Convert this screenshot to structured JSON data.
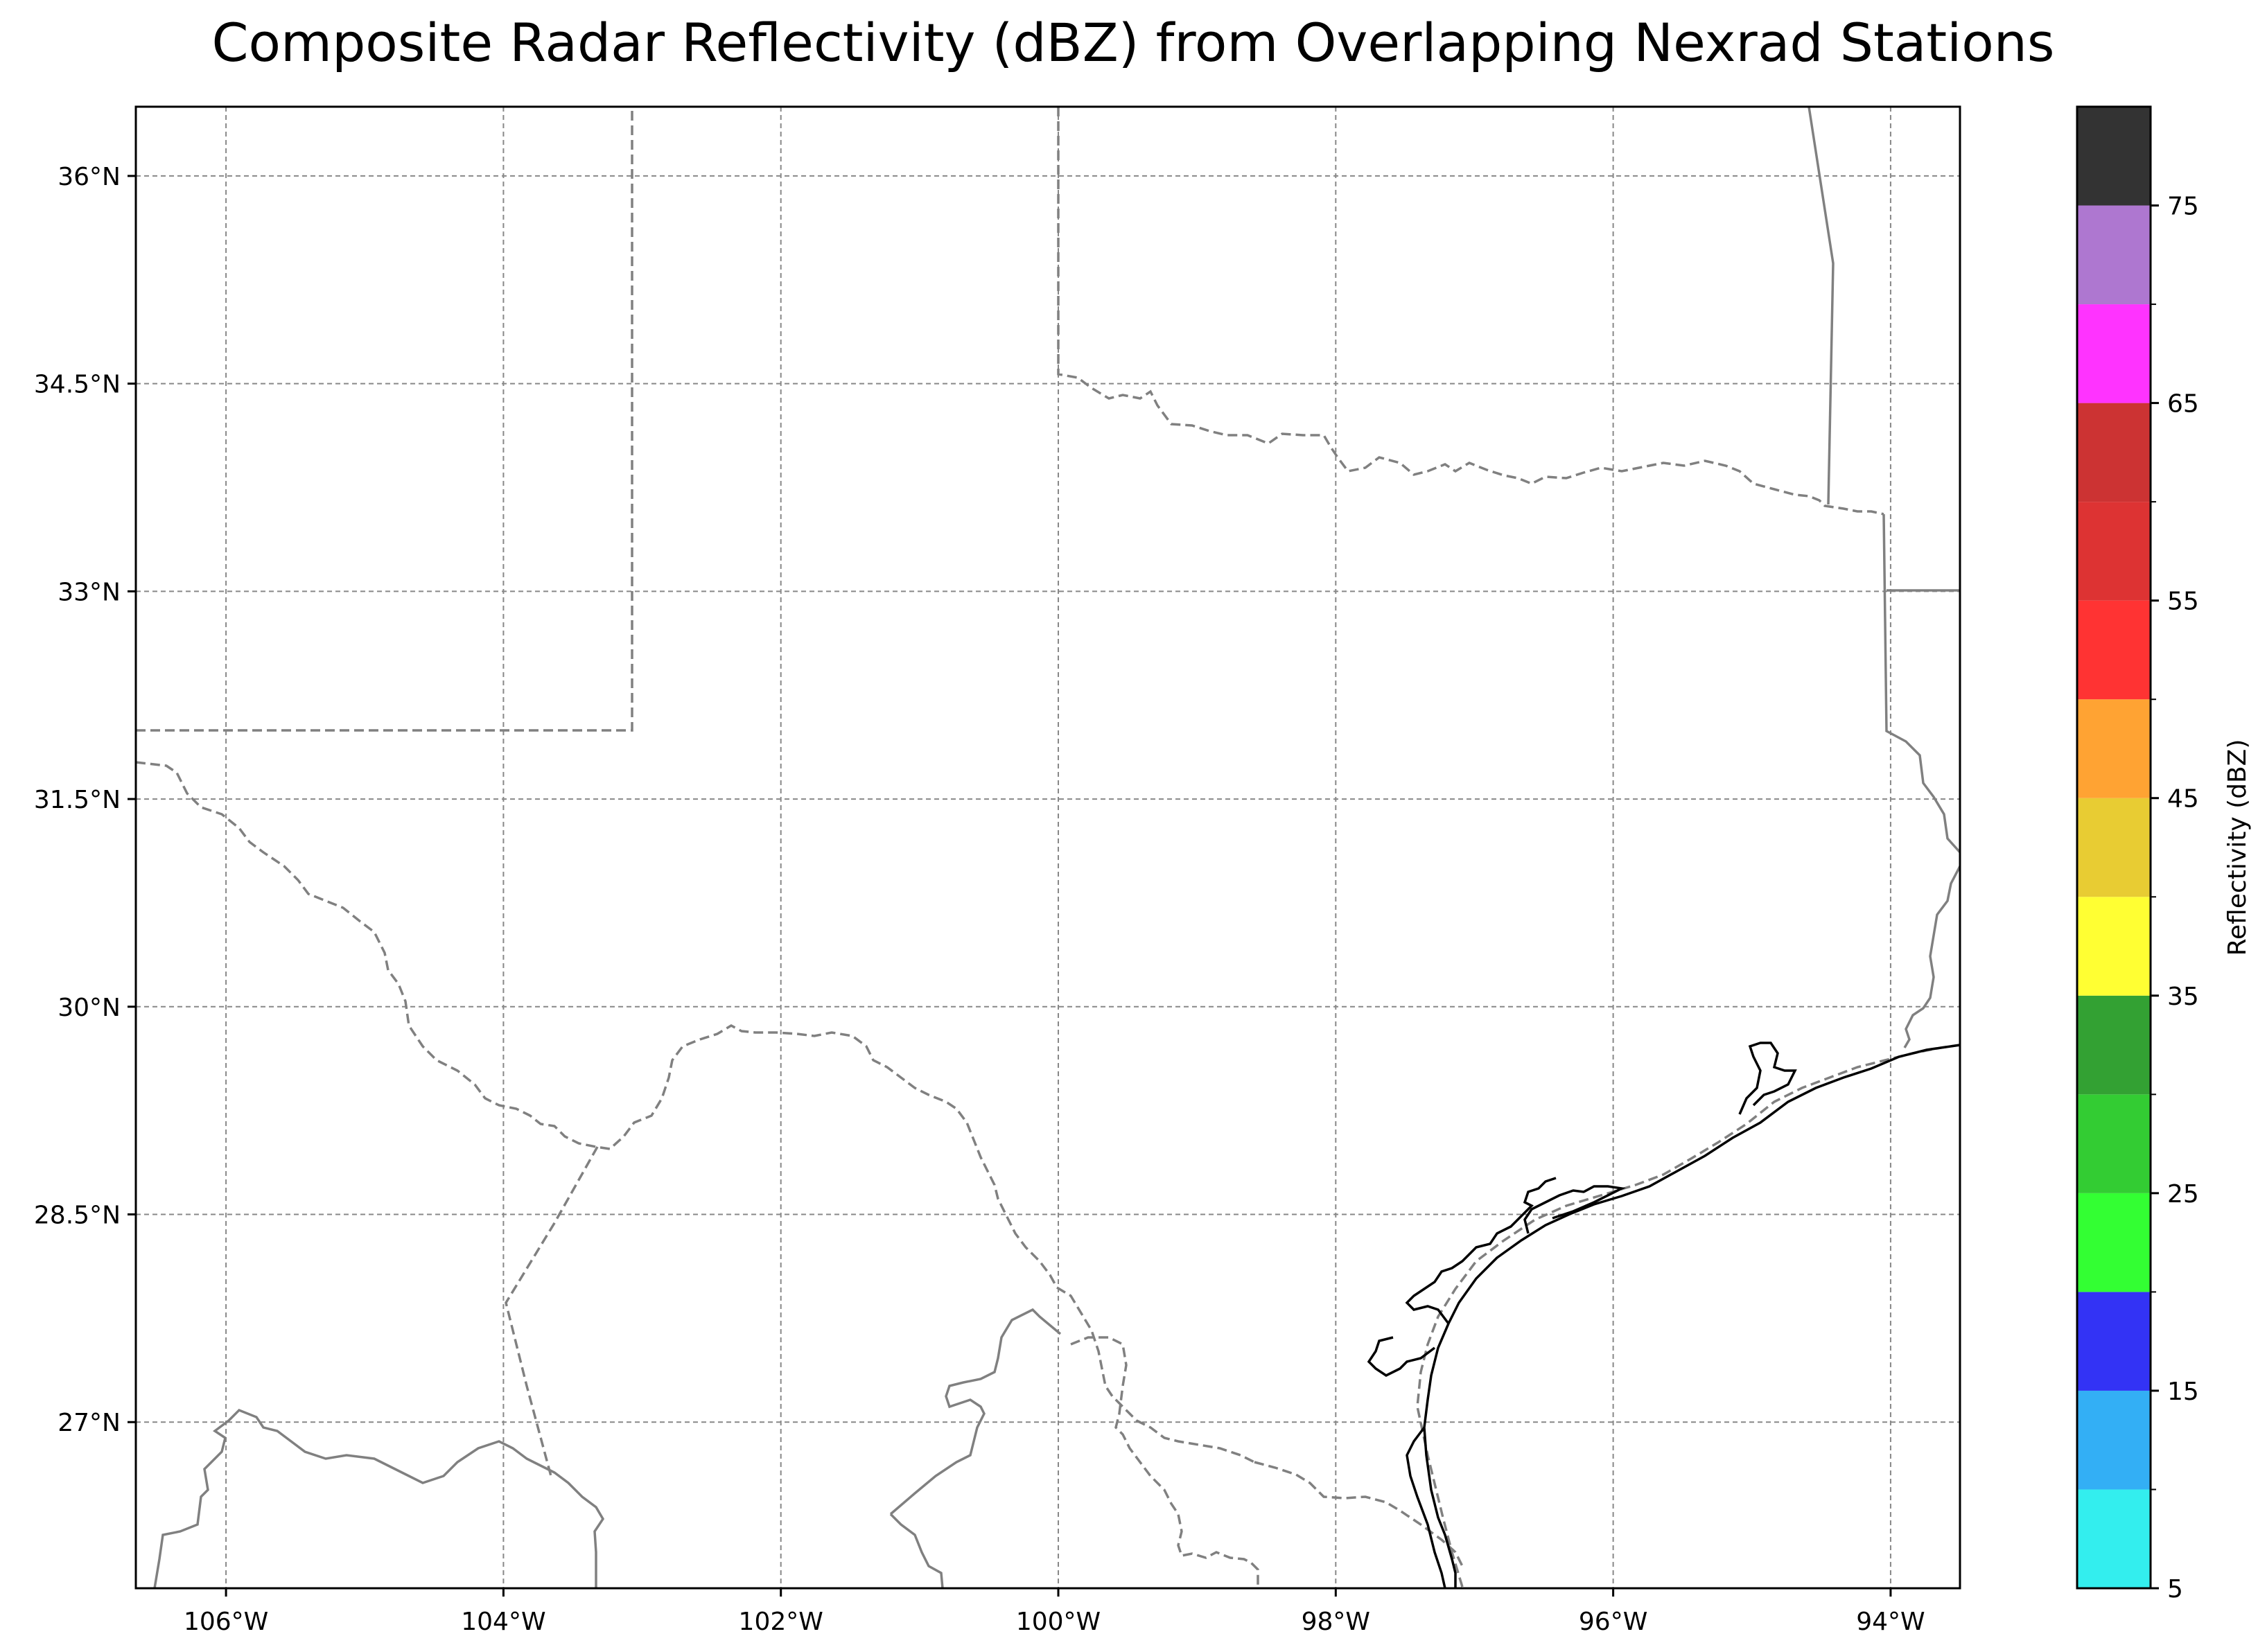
{
  "title": "Composite Radar Reflectivity (dBZ) from Overlapping Nexrad Stations",
  "map": {
    "lon_range": [
      -106.65,
      -93.5
    ],
    "lat_range": [
      25.8,
      36.5
    ],
    "lon_ticks": [
      {
        "value": -106,
        "label": "106°W"
      },
      {
        "value": -104,
        "label": "104°W"
      },
      {
        "value": -102,
        "label": "102°W"
      },
      {
        "value": -100,
        "label": "100°W"
      },
      {
        "value": -98,
        "label": "98°W"
      },
      {
        "value": -96,
        "label": "96°W"
      },
      {
        "value": -94,
        "label": "94°W"
      }
    ],
    "lat_ticks": [
      {
        "value": 27,
        "label": "27°N"
      },
      {
        "value": 28.5,
        "label": "28.5°N"
      },
      {
        "value": 30,
        "label": "30°N"
      },
      {
        "value": 31.5,
        "label": "31.5°N"
      },
      {
        "value": 33,
        "label": "33°N"
      },
      {
        "value": 34.5,
        "label": "34.5°N"
      },
      {
        "value": 36,
        "label": "36°N"
      }
    ],
    "gridlines": true,
    "border_color": "#808080",
    "coast_color": "#000000"
  },
  "colorbar": {
    "label": "Reflectivity (dBZ)",
    "range": [
      5,
      80
    ],
    "ticks": [
      {
        "value": 5,
        "label": "5"
      },
      {
        "value": 15,
        "label": "15"
      },
      {
        "value": 25,
        "label": "25"
      },
      {
        "value": 35,
        "label": "35"
      },
      {
        "value": 45,
        "label": "45"
      },
      {
        "value": 55,
        "label": "55"
      },
      {
        "value": 65,
        "label": "65"
      },
      {
        "value": 75,
        "label": "75"
      }
    ],
    "bins": [
      {
        "from": 5,
        "to": 10,
        "color": "#33eeee"
      },
      {
        "from": 10,
        "to": 15,
        "color": "#33aff5"
      },
      {
        "from": 15,
        "to": 20,
        "color": "#3333f5"
      },
      {
        "from": 20,
        "to": 25,
        "color": "#33ff33"
      },
      {
        "from": 25,
        "to": 30,
        "color": "#33cc33"
      },
      {
        "from": 30,
        "to": 35,
        "color": "#33a133"
      },
      {
        "from": 35,
        "to": 40,
        "color": "#ffff33"
      },
      {
        "from": 40,
        "to": 45,
        "color": "#e8cc33"
      },
      {
        "from": 45,
        "to": 50,
        "color": "#ffa333"
      },
      {
        "from": 50,
        "to": 55,
        "color": "#ff3333"
      },
      {
        "from": 55,
        "to": 60,
        "color": "#dd3333"
      },
      {
        "from": 60,
        "to": 65,
        "color": "#cc3333"
      },
      {
        "from": 65,
        "to": 70,
        "color": "#ff33ff"
      },
      {
        "from": 70,
        "to": 75,
        "color": "#ae77d0"
      },
      {
        "from": 75,
        "to": 80,
        "color": "#333333"
      }
    ]
  }
}
